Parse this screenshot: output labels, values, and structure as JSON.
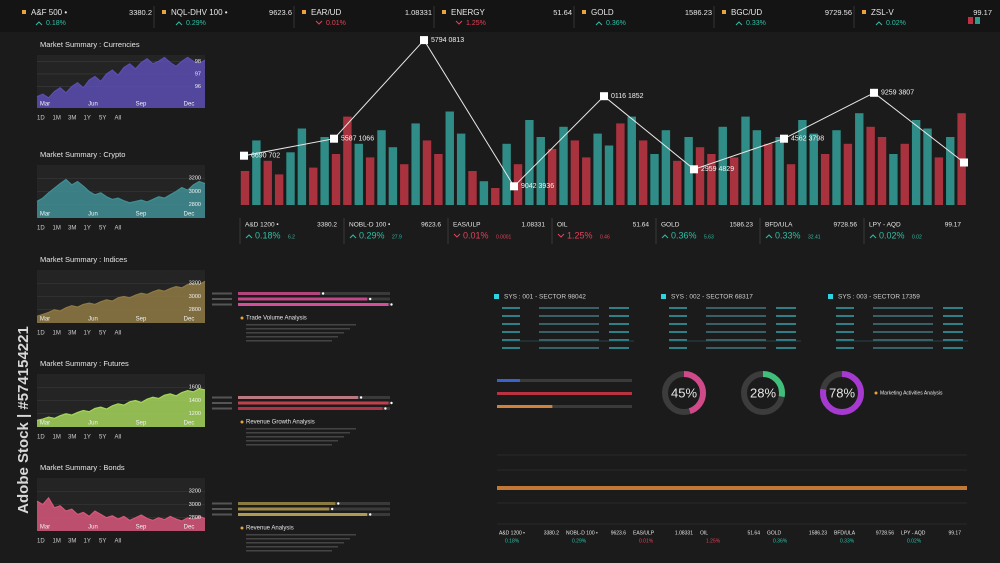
{
  "top_ticker": [
    {
      "name": "A&F 500 •",
      "price": "3380.2",
      "change": "0.18%",
      "trend": "up"
    },
    {
      "name": "NQL-DHV 100 •",
      "price": "9623.6",
      "change": "0.29%",
      "trend": "up"
    },
    {
      "name": "EAR/UD",
      "price": "1.08331",
      "change": "0.01%",
      "trend": "down"
    },
    {
      "name": "ENERGY",
      "price": "51.64",
      "change": "1.25%",
      "trend": "down"
    },
    {
      "name": "GOLD",
      "price": "1586.23",
      "change": "0.36%",
      "trend": "up"
    },
    {
      "name": "BGC/UD",
      "price": "9729.56",
      "change": "0.33%",
      "trend": "up"
    },
    {
      "name": "ZSL-V",
      "price": "99.17",
      "change": "0.02%",
      "trend": "up"
    }
  ],
  "months": [
    "Mar",
    "Jun",
    "Sep",
    "Dec"
  ],
  "ranges": [
    "1D",
    "1M",
    "3M",
    "1Y",
    "5Y",
    "All"
  ],
  "mini_charts": [
    {
      "title": "Market Summary : Currencies",
      "color": "#5b4db3",
      "ylim": [
        94.3,
        98.5
      ],
      "yticks": [
        96,
        97,
        98
      ],
      "values": [
        95.2,
        95.4,
        95.1,
        95.6,
        95.9,
        95.5,
        96.0,
        96.3,
        95.9,
        96.5,
        96.8,
        96.4,
        97.0,
        97.3,
        96.9,
        97.5,
        97.8,
        97.4,
        97.9,
        98.2,
        97.8,
        98.0,
        98.3,
        97.9,
        97.6,
        98.0,
        98.3,
        98.0,
        97.8,
        98.1
      ]
    },
    {
      "title": "Market Summary : Crypto",
      "color": "#3f8f95",
      "ylim": [
        2600,
        3400
      ],
      "yticks": [
        2800,
        3000,
        3200
      ],
      "values": [
        2850,
        2900,
        2980,
        3050,
        3120,
        3180,
        3100,
        3150,
        3080,
        3000,
        2950,
        2980,
        2920,
        2880,
        2900,
        2860,
        2830,
        2850,
        2870,
        2840,
        2880,
        2920,
        2900,
        2950,
        3000,
        3060,
        3020,
        3100,
        3150,
        3120
      ]
    },
    {
      "title": "Market Summary : Indices",
      "color": "#8f7a44",
      "ylim": [
        2600,
        3400
      ],
      "yticks": [
        2800,
        3000,
        3200
      ],
      "values": [
        2700,
        2730,
        2760,
        2800,
        2780,
        2830,
        2860,
        2840,
        2880,
        2900,
        2880,
        2920,
        2950,
        2930,
        2980,
        3000,
        2980,
        3020,
        3050,
        3030,
        3070,
        3100,
        3080,
        3120,
        3150,
        3130,
        3180,
        3200,
        3180,
        3230
      ]
    },
    {
      "title": "Market Summary : Futures",
      "color": "#a5d65a",
      "ylim": [
        1000,
        1800
      ],
      "yticks": [
        1200,
        1400,
        1600
      ],
      "values": [
        1100,
        1120,
        1150,
        1130,
        1170,
        1200,
        1180,
        1220,
        1250,
        1230,
        1280,
        1300,
        1270,
        1320,
        1350,
        1330,
        1380,
        1400,
        1370,
        1420,
        1450,
        1430,
        1480,
        1500,
        1470,
        1520,
        1550,
        1530,
        1580,
        1560
      ]
    },
    {
      "title": "Market Summary : Bonds",
      "color": "#d6577a",
      "ylim": [
        2600,
        3400
      ],
      "yticks": [
        2800,
        3000,
        3200
      ],
      "values": [
        3050,
        3000,
        3100,
        2950,
        2980,
        2900,
        2930,
        2850,
        2880,
        2820,
        2900,
        2850,
        2800,
        2830,
        2780,
        2820,
        2760,
        2800,
        2840,
        2790,
        2760,
        2800,
        2770,
        2820,
        2780,
        2750,
        2800,
        2770,
        2820,
        2790
      ]
    }
  ],
  "main_chart": {
    "ylim": [
      0,
      100
    ],
    "values": [
      20,
      38,
      26,
      18,
      31,
      45,
      22,
      40,
      30,
      52,
      36,
      28,
      44,
      34,
      24,
      48,
      38,
      30,
      55,
      42,
      20,
      14,
      10,
      36,
      24,
      50,
      40,
      33,
      46,
      38,
      28,
      42,
      35,
      48,
      52,
      38,
      30,
      44,
      26,
      40,
      34,
      30,
      46,
      28,
      52,
      44,
      36,
      40,
      24,
      50,
      42,
      30,
      44,
      36,
      54,
      46,
      40,
      30,
      36,
      50,
      45,
      28,
      40,
      54
    ],
    "colors": [
      "#a8323e",
      "#2f8c86",
      "#a8323e",
      "#a8323e",
      "#2f8c86",
      "#2f8c86",
      "#a8323e",
      "#2f8c86",
      "#a8323e",
      "#a8323e",
      "#2f8c86",
      "#a8323e",
      "#2f8c86",
      "#2f8c86",
      "#a8323e",
      "#2f8c86",
      "#a8323e",
      "#a8323e",
      "#2f8c86",
      "#2f8c86",
      "#a8323e",
      "#2f8c86",
      "#a8323e",
      "#2f8c86",
      "#a8323e",
      "#2f8c86",
      "#2f8c86",
      "#a8323e",
      "#2f8c86",
      "#a8323e",
      "#a8323e",
      "#2f8c86",
      "#2f8c86",
      "#a8323e",
      "#2f8c86",
      "#a8323e",
      "#2f8c86",
      "#2f8c86",
      "#a8323e",
      "#2f8c86",
      "#a8323e",
      "#a8323e",
      "#2f8c86",
      "#a8323e",
      "#2f8c86",
      "#2f8c86",
      "#a8323e",
      "#2f8c86",
      "#a8323e",
      "#2f8c86",
      "#2f8c86",
      "#a8323e",
      "#2f8c86",
      "#a8323e",
      "#2f8c86",
      "#a8323e",
      "#a8323e",
      "#2f8c86",
      "#a8323e",
      "#2f8c86",
      "#2f8c86",
      "#a8323e",
      "#2f8c86",
      "#a8323e"
    ],
    "line": {
      "values": [
        29,
        39,
        97,
        11,
        64,
        21,
        39,
        66,
        25
      ],
      "labels": [
        "6690 702",
        "5587 1066",
        "5794 0813",
        "9042 3936",
        "0116 1852",
        "2959 4829",
        "4562 3798",
        "9259 3807",
        null
      ]
    }
  },
  "mid_ticker": [
    {
      "name": "A&D 1200 •",
      "price": "3380.2",
      "change": "0.18%",
      "delta": "6.2",
      "trend": "up"
    },
    {
      "name": "NOBL-D 100 •",
      "price": "9623.6",
      "change": "0.29%",
      "delta": "27.9",
      "trend": "up"
    },
    {
      "name": "EAS/ULP",
      "price": "1.08331",
      "change": "0.01%",
      "delta": "0.0001",
      "trend": "down"
    },
    {
      "name": "OIL",
      "price": "51.64",
      "change": "1.25%",
      "delta": "0.46",
      "trend": "down"
    },
    {
      "name": "GOLD",
      "price": "1586.23",
      "change": "0.36%",
      "delta": "5.63",
      "trend": "up"
    },
    {
      "name": "BFD/ULA",
      "price": "9728.56",
      "change": "0.33%",
      "delta": "32.41",
      "trend": "up"
    },
    {
      "name": "LPY - AQD",
      "price": "99.17",
      "change": "0.02%",
      "delta": "0.02",
      "trend": "up"
    }
  ],
  "hbar_groups": [
    {
      "caption": "Trade Volume Analysis",
      "xlim": [
        0,
        100
      ],
      "values": [
        54,
        85,
        99
      ],
      "colors": [
        "#b0457a",
        "#c2468a",
        "#d2509a"
      ]
    },
    {
      "caption": "Revenue Growth Analysis",
      "xlim": [
        0,
        100
      ],
      "values": [
        79,
        99,
        95
      ],
      "colors": [
        "#b87a80",
        "#c0404c",
        "#b03246"
      ]
    },
    {
      "caption": "Revenue Analysis",
      "xlim": [
        0,
        100
      ],
      "values": [
        64,
        60,
        85
      ],
      "colors": [
        "#8a7a40",
        "#a08a4a",
        "#b09a52"
      ]
    }
  ],
  "sectors": [
    "SYS : 001 - SECTOR 98042",
    "SYS : 002 - SECTOR 68317",
    "SYS : 003 - SECTOR 17359"
  ],
  "progress": {
    "xlim": [
      0,
      100
    ],
    "values": [
      17,
      100,
      41
    ],
    "colors": [
      "#3a63c8",
      "#b8323f",
      "#d0823a"
    ]
  },
  "donuts": {
    "ylim": [
      0,
      100
    ],
    "values": [
      45,
      28,
      78
    ],
    "value_labels": [
      "45%",
      "28%",
      "78%"
    ],
    "colors": [
      "#d04a8a",
      "#3fbf7a",
      "#a63ad0"
    ],
    "caption": "Marketing Activities Analysis"
  },
  "watermark": "Adobe Stock | #574154221"
}
